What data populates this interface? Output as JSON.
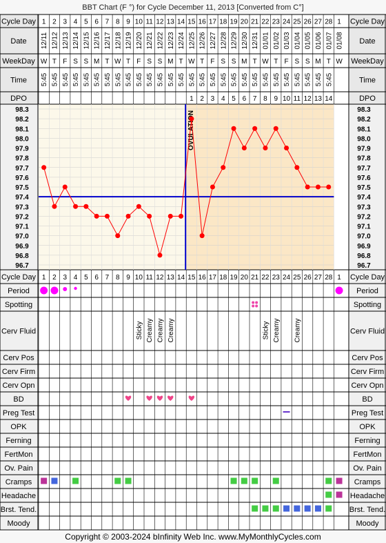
{
  "title": "BBT Chart (F °) for Cycle December 11, 2013  [Converted from C°]",
  "footer": "Copyright © 2003-2024 bInfinity Web Inc.     www.MyMonthlyCycles.com",
  "row_labels": {
    "cycle_day": "Cycle Day",
    "date": "Date",
    "weekday": "WeekDay",
    "time": "Time",
    "dpo": "DPO",
    "period": "Period",
    "spotting": "Spotting",
    "cerv_fluid": "Cerv Fluid",
    "cerv_pos": "Cerv Pos",
    "cerv_firm": "Cerv Firm",
    "cerv_opn": "Cerv Opn",
    "bd": "BD",
    "preg_test": "Preg Test",
    "opk": "OPK",
    "ferning": "Ferning",
    "fertmon": "FertMon",
    "ov_pain": "Ov. Pain",
    "cramps": "Cramps",
    "headache": "Headache",
    "brst_tend": "Brst. Tend.",
    "moody": "Moody"
  },
  "ovulation_label": "OVULATION",
  "colors": {
    "line": "#ff0000",
    "coverline": "#0000cc",
    "ovulation": "#0000cc",
    "pre_bg": "#fcf8ea",
    "post_bg": "#fbe7c6",
    "period": "#ff00ff",
    "cramps_a": "#bb3399",
    "cramps_b": "#4466dd",
    "green": "#44cc44",
    "blue": "#4466dd",
    "heart": "#ee4488",
    "preg": "#6633cc",
    "spot": "#ee44aa"
  },
  "chart_data": {
    "type": "line",
    "x_cycle_days": [
      1,
      2,
      3,
      4,
      5,
      6,
      7,
      8,
      9,
      10,
      11,
      12,
      13,
      14,
      15,
      16,
      17,
      18,
      19,
      20,
      21,
      22,
      23,
      24,
      25,
      26,
      27,
      28,
      1
    ],
    "dates": [
      "12/11",
      "12/12",
      "12/13",
      "12/14",
      "12/15",
      "12/16",
      "12/17",
      "12/18",
      "12/19",
      "12/20",
      "12/21",
      "12/22",
      "12/23",
      "12/24",
      "12/25",
      "12/26",
      "12/27",
      "12/28",
      "12/29",
      "12/30",
      "12/31",
      "01/01",
      "01/02",
      "01/03",
      "01/04",
      "01/05",
      "01/06",
      "01/07",
      "01/08"
    ],
    "weekdays": [
      "W",
      "T",
      "F",
      "S",
      "S",
      "M",
      "T",
      "W",
      "T",
      "F",
      "S",
      "S",
      "M",
      "T",
      "W",
      "T",
      "F",
      "S",
      "S",
      "M",
      "T",
      "W",
      "T",
      "F",
      "S",
      "S",
      "M",
      "T",
      "W"
    ],
    "times": [
      "5:45",
      "5:45",
      "5:45",
      "5:45",
      "5:45",
      "5:45",
      "5:45",
      "5:45",
      "5:45",
      "5:45",
      "5:45",
      "5:45",
      "5:45",
      "5:45",
      "5:45",
      "5:45",
      "5:45",
      "5:45",
      "5:45",
      "5:45",
      "5:45",
      "5:45",
      "5:45",
      "5:45",
      "5:45",
      "5:45",
      "5:45",
      "5:45",
      ""
    ],
    "dpo": [
      "",
      "",
      "",
      "",
      "",
      "",
      "",
      "",
      "",
      "",
      "",
      "",
      "",
      "",
      "1",
      "2",
      "3",
      "4",
      "5",
      "6",
      "7",
      "8",
      "9",
      "10",
      "11",
      "12",
      "13",
      "14",
      ""
    ],
    "temps": [
      97.7,
      97.3,
      97.5,
      97.3,
      97.3,
      97.2,
      97.2,
      97.0,
      97.2,
      97.3,
      97.2,
      96.8,
      97.2,
      97.2,
      98.2,
      97.0,
      97.5,
      97.7,
      98.1,
      97.9,
      98.1,
      97.9,
      98.1,
      97.9,
      97.7,
      97.5,
      97.5,
      97.5,
      null
    ],
    "y_ticks": [
      "98.3",
      "98.2",
      "98.1",
      "98.0",
      "97.9",
      "97.8",
      "97.7",
      "97.6",
      "97.5",
      "97.4",
      "97.3",
      "97.2",
      "97.1",
      "97.0",
      "96.9",
      "96.8",
      "96.7"
    ],
    "ylim": [
      96.7,
      98.3
    ],
    "coverline": 97.4,
    "ovulation_after_day": 14
  },
  "cerv_fluid": {
    "10": "Sticky",
    "11": "Creamy",
    "12": "Creamy",
    "13": "Creamy",
    "22": "Sticky",
    "23": "Creamy",
    "25": "Creamy"
  },
  "period": {
    "1": "big",
    "2": "big",
    "3": "small",
    "4": "tiny",
    "29": "big"
  },
  "spotting_days": [
    21
  ],
  "bd_days": [
    9,
    11,
    12,
    13,
    15
  ],
  "preg_days": [
    24
  ],
  "cramps": {
    "1": "a",
    "2": "b",
    "4": "g",
    "8": "g",
    "9": "g",
    "19": "g",
    "20": "g",
    "21": "g",
    "23": "g",
    "28": "g",
    "29": "a"
  },
  "headache": {
    "28": "g",
    "29": "a"
  },
  "brst_tend": {
    "21": "g",
    "22": "g",
    "23": "g",
    "24": "b",
    "25": "b",
    "26": "b",
    "27": "b",
    "28": "g"
  }
}
